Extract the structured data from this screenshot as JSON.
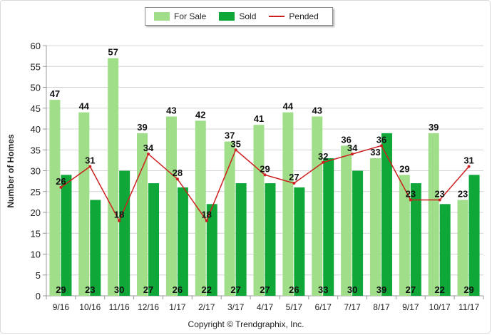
{
  "legend": {
    "for_sale": "For Sale",
    "sold": "Sold",
    "pended": "Pended"
  },
  "copyright": "Copyright © Trendgraphix, Inc.",
  "colors": {
    "for_sale": "#a1de8a",
    "sold": "#0fa838",
    "pended": "#cc2020",
    "grid": "#d4d4d4"
  },
  "chart_data": {
    "type": "bar",
    "ylabel": "Number of Homes",
    "ylim": [
      0,
      60
    ],
    "yticks": [
      0,
      5,
      10,
      15,
      20,
      25,
      30,
      35,
      40,
      45,
      50,
      55,
      60
    ],
    "grid": true,
    "legend_position": "top-center",
    "categories": [
      "9/16",
      "10/16",
      "11/16",
      "12/16",
      "1/17",
      "2/17",
      "3/17",
      "4/17",
      "5/17",
      "6/17",
      "7/17",
      "8/17",
      "9/17",
      "10/17",
      "11/17"
    ],
    "series": [
      {
        "name": "For Sale",
        "type": "bar",
        "values": [
          47,
          44,
          57,
          39,
          43,
          42,
          37,
          41,
          44,
          43,
          36,
          33,
          29,
          39,
          23
        ]
      },
      {
        "name": "Sold",
        "type": "bar",
        "values": [
          29,
          23,
          30,
          27,
          26,
          22,
          27,
          27,
          26,
          33,
          30,
          39,
          27,
          22,
          29
        ]
      },
      {
        "name": "Pended",
        "type": "line",
        "values": [
          26,
          31,
          18,
          34,
          28,
          18,
          35,
          29,
          27,
          32,
          34,
          36,
          23,
          23,
          31
        ]
      }
    ]
  }
}
